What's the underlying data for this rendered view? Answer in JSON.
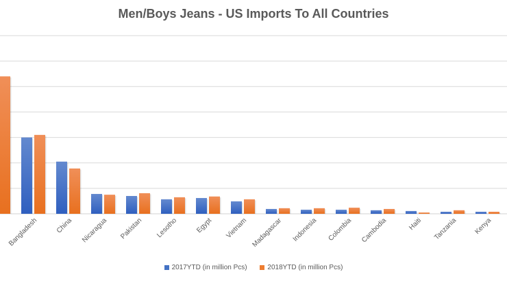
{
  "chart_data": {
    "type": "bar",
    "title": "Men/Boys Jeans - US Imports To All Countries",
    "xlabel": "",
    "ylabel": "",
    "ylim": [
      0,
      70
    ],
    "grid": true,
    "legend_position": "bottom",
    "categories": [
      "",
      "Bangladesh",
      "China",
      "Nicaragua",
      "Pakistan",
      "Lesotho",
      "Egypt",
      "Vietnam",
      "Madagascar",
      "Indonesia",
      "Colombia",
      "Cambodia",
      "Haiti",
      "Tanzania",
      "Kenya"
    ],
    "series": [
      {
        "name": "2017YTD (in million Pcs)",
        "color": "#4472C4",
        "values": [
          null,
          30,
          20.5,
          7.8,
          7.0,
          5.7,
          6.2,
          4.9,
          1.9,
          1.6,
          1.6,
          1.4,
          1.1,
          0.8,
          0.8
        ]
      },
      {
        "name": "2018YTD (in million Pcs)",
        "color": "#ED7D31",
        "values": [
          54,
          31,
          17.8,
          7.5,
          8.1,
          6.5,
          6.8,
          5.7,
          2.2,
          2.2,
          2.4,
          1.9,
          0.5,
          1.4,
          0.8
        ]
      }
    ]
  }
}
